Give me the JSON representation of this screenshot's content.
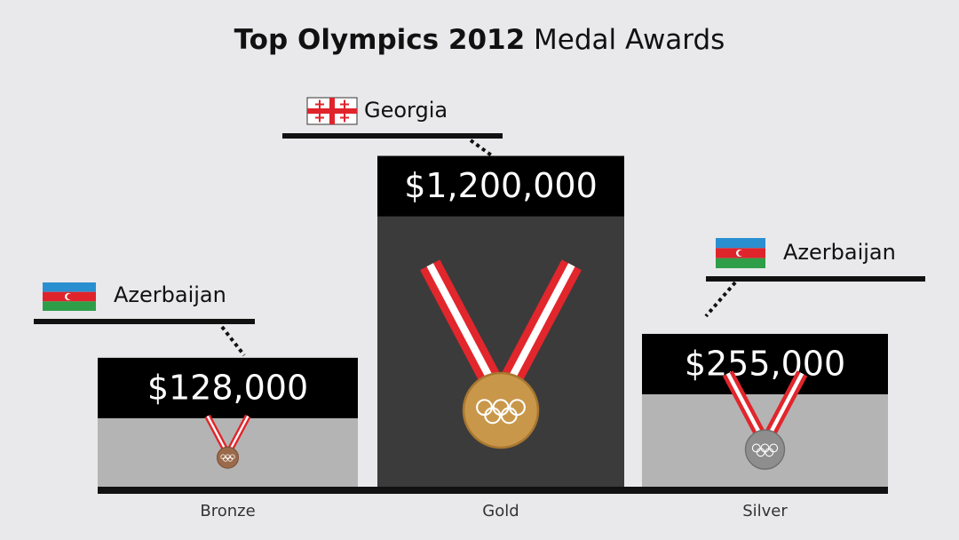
{
  "chart_data": {
    "type": "podium",
    "title": [
      "Top Olympics 2012",
      "Medal Awards"
    ],
    "categories": [
      "Bronze",
      "Gold",
      "Silver"
    ],
    "values": [
      128000,
      1200000,
      255000
    ],
    "value_labels": [
      "$128,000",
      "$1,200,000",
      "$255,000"
    ],
    "countries": [
      "Azerbaijan",
      "Georgia",
      "Azerbaijan"
    ],
    "colors": [
      "#b4b4b4",
      "#3b3b3b",
      "#b4b4b4"
    ]
  }
}
